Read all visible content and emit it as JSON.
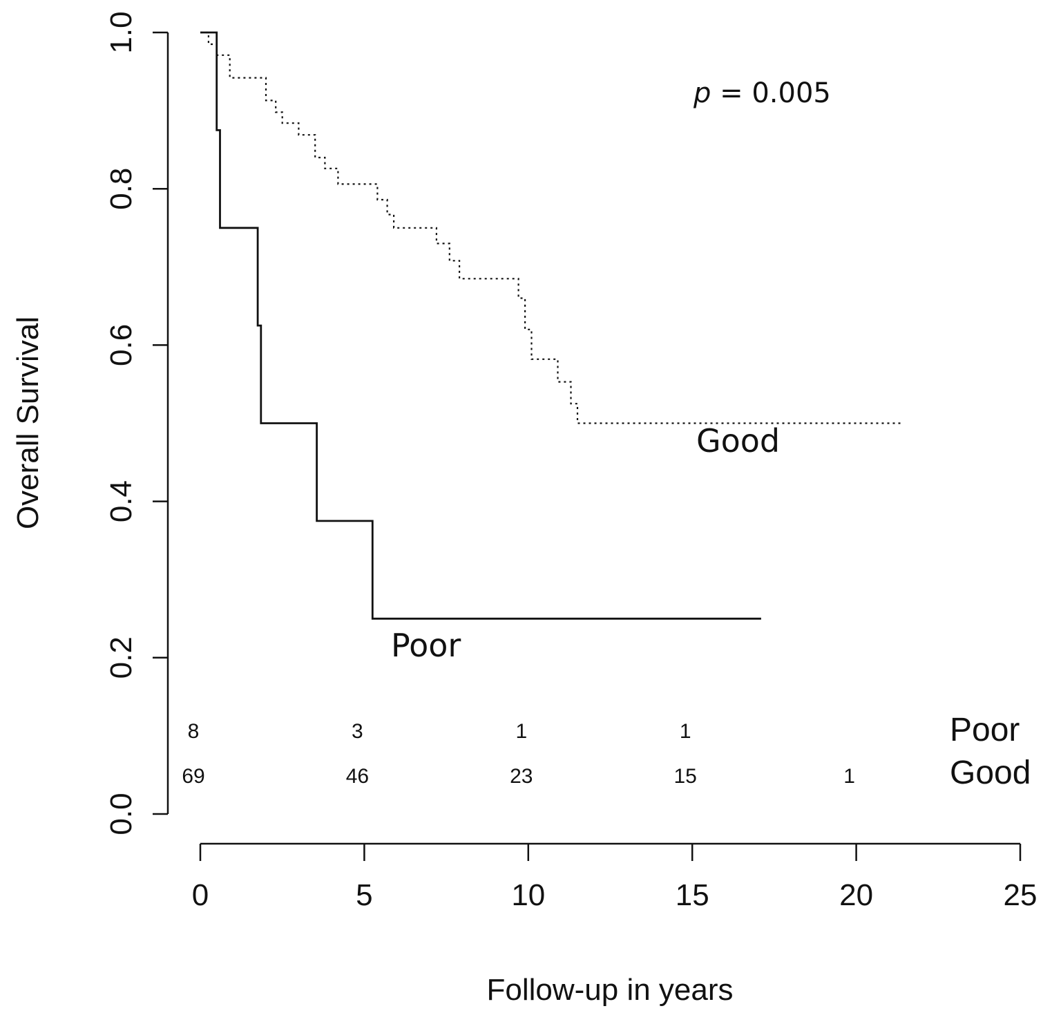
{
  "chart_data": {
    "type": "line",
    "title": "",
    "xlabel": "Follow-up in years",
    "ylabel": "Overall Survival",
    "xlim": [
      0,
      25
    ],
    "ylim": [
      0,
      1
    ],
    "x_ticks": [
      "0",
      "5",
      "10",
      "15",
      "20",
      "25"
    ],
    "y_ticks": [
      "0.0",
      "0.2",
      "0.4",
      "0.6",
      "0.8",
      "1.0"
    ],
    "grid": false,
    "annotation": {
      "p_symbol": "p",
      "p_text": " = 0.005"
    },
    "series": [
      {
        "name": "Poor",
        "style": "solid",
        "label": "Poor",
        "x": [
          0,
          0.5,
          0.5,
          0.6,
          0.6,
          1.75,
          1.75,
          1.85,
          1.85,
          3.55,
          3.55,
          5.25,
          5.25,
          17.1
        ],
        "y": [
          1.0,
          1.0,
          0.875,
          0.875,
          0.75,
          0.75,
          0.625,
          0.625,
          0.5,
          0.5,
          0.375,
          0.375,
          0.25,
          0.25
        ]
      },
      {
        "name": "Good",
        "style": "dotted",
        "label": "Good",
        "x": [
          0,
          0.25,
          0.25,
          0.5,
          0.5,
          0.9,
          0.9,
          2.0,
          2.0,
          2.3,
          2.3,
          2.5,
          2.5,
          3.0,
          3.0,
          3.5,
          3.5,
          3.8,
          3.8,
          4.2,
          4.2,
          5.4,
          5.4,
          5.7,
          5.7,
          5.9,
          5.9,
          7.2,
          7.2,
          7.6,
          7.6,
          7.9,
          7.9,
          9.7,
          9.7,
          9.9,
          9.9,
          10.1,
          10.1,
          10.9,
          10.9,
          11.3,
          11.3,
          11.5,
          11.5,
          21.4
        ],
        "y": [
          1.0,
          1.0,
          0.985,
          0.985,
          0.971,
          0.971,
          0.942,
          0.942,
          0.913,
          0.913,
          0.898,
          0.898,
          0.884,
          0.884,
          0.869,
          0.869,
          0.84,
          0.84,
          0.826,
          0.826,
          0.806,
          0.806,
          0.786,
          0.786,
          0.767,
          0.767,
          0.75,
          0.75,
          0.73,
          0.73,
          0.708,
          0.708,
          0.685,
          0.685,
          0.66,
          0.66,
          0.62,
          0.62,
          0.582,
          0.582,
          0.553,
          0.553,
          0.525,
          0.525,
          0.5,
          0.5
        ]
      }
    ],
    "risk_table": {
      "times": [
        0,
        5,
        10,
        15,
        20
      ],
      "rows": [
        {
          "name": "Poor",
          "counts": [
            "8",
            "3",
            "1",
            "1",
            ""
          ]
        },
        {
          "name": "Good",
          "counts": [
            "69",
            "46",
            "23",
            "15",
            "1"
          ]
        }
      ]
    }
  }
}
